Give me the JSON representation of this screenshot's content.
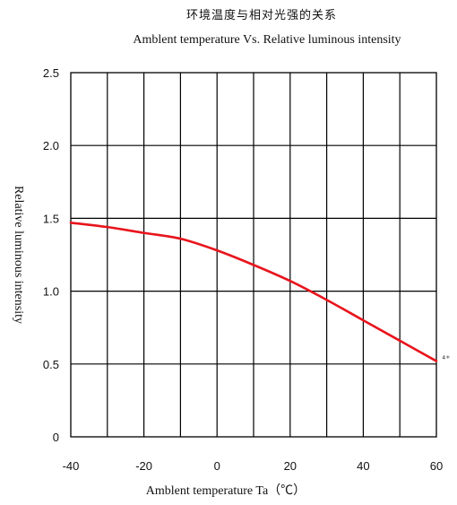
{
  "chart_data": {
    "type": "line",
    "title": "环境温度与相对光强的关系",
    "subtitle": "Amblent temperature  Vs.  Relative luminous intensity",
    "xlabel": "Amblent temperature Ta（℃）",
    "ylabel": "Relative luminous intensity",
    "xlim": [
      -40,
      60
    ],
    "ylim": [
      0,
      2.5
    ],
    "x_ticks": [
      -40,
      -20,
      0,
      20,
      40,
      60
    ],
    "x_tick_labels": [
      "-40",
      "-20",
      "0",
      "20",
      "40",
      "60"
    ],
    "y_ticks": [
      0,
      0.5,
      1.0,
      1.5,
      2.0,
      2.5
    ],
    "y_tick_labels": [
      "0",
      "0.5",
      "1.0",
      "1.5",
      "2.0",
      "2.5"
    ],
    "grid": true,
    "grid_x_step": 10,
    "grid_y_step": 0.5,
    "series": [
      {
        "color": "#e8141c",
        "x": [
          -40,
          -30,
          -20,
          -10,
          0,
          10,
          20,
          30,
          40,
          50,
          60
        ],
        "y": [
          1.47,
          1.44,
          1.4,
          1.36,
          1.28,
          1.18,
          1.07,
          0.94,
          0.8,
          0.66,
          0.52
        ]
      }
    ],
    "end_marker": "⁴⁺"
  }
}
